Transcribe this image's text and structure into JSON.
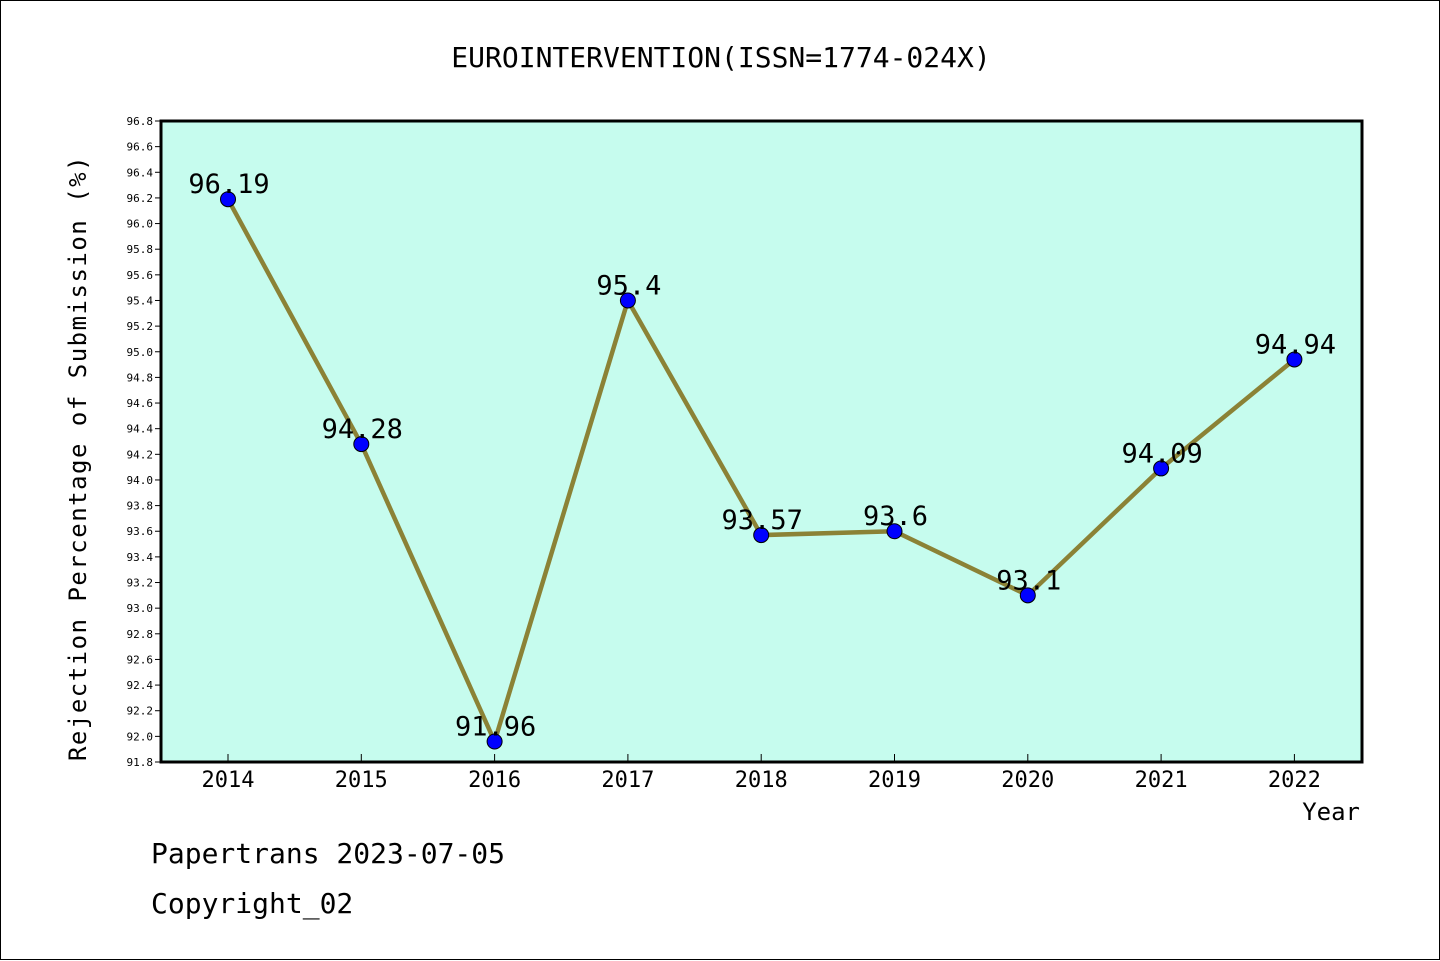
{
  "chart_data": {
    "type": "line",
    "title": "EUROINTERVENTION(ISSN=1774-024X)",
    "xlabel": "Year",
    "ylabel": "Rejection Percentage of Submission (%)",
    "categories": [
      "2014",
      "2015",
      "2016",
      "2017",
      "2018",
      "2019",
      "2020",
      "2021",
      "2022"
    ],
    "series": [
      {
        "values": [
          96.19,
          94.28,
          91.96,
          95.4,
          93.57,
          93.6,
          93.1,
          94.09,
          94.94
        ],
        "data_labels": [
          "96.19",
          "94.28",
          "91.96",
          "95.4",
          "93.57",
          "93.6",
          "93.1",
          "94.09",
          "94.94"
        ]
      }
    ],
    "ylim": [
      91.8,
      96.8
    ],
    "yticks": [
      "91.8",
      "92.0",
      "92.2",
      "92.4",
      "92.6",
      "92.8",
      "93.0",
      "93.2",
      "93.4",
      "93.6",
      "93.8",
      "94.0",
      "94.2",
      "94.4",
      "94.6",
      "94.8",
      "95.0",
      "95.2",
      "95.4",
      "95.6",
      "95.8",
      "96.0",
      "96.2",
      "96.4",
      "96.6",
      "96.8"
    ],
    "grid": false,
    "colors": {
      "plot_background": "#c6fcee",
      "line": "#8b8236",
      "marker": "#0000ff"
    }
  },
  "footer": {
    "line1": "Papertrans 2023-07-05",
    "line2": "Copyright_02"
  }
}
